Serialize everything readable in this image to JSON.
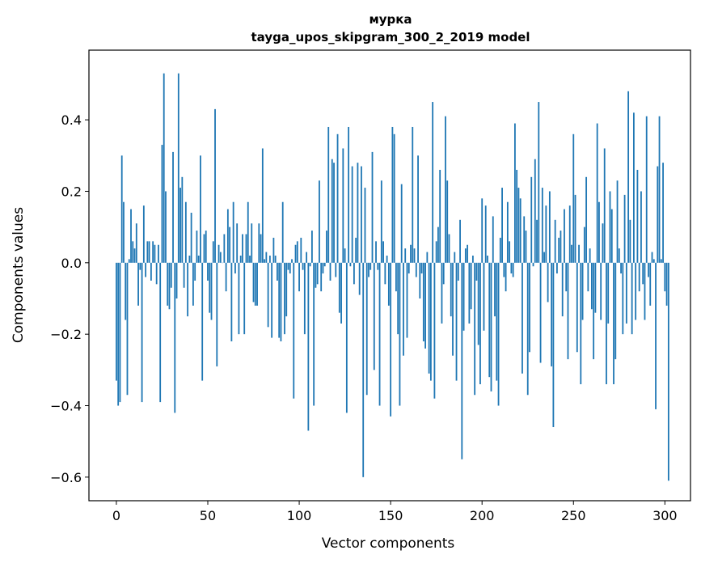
{
  "chart_data": {
    "type": "bar",
    "title_lines": [
      "мурка",
      "tayga_upos_skipgram_300_2_2019 model"
    ],
    "xlabel": "Vector components",
    "ylabel": "Components values",
    "xlim": [
      -15,
      314
    ],
    "ylim": [
      -0.666,
      0.595
    ],
    "xticks": [
      0,
      50,
      100,
      150,
      200,
      250,
      300
    ],
    "yticks": [
      -0.6,
      -0.4,
      -0.2,
      0.0,
      0.2,
      0.4
    ],
    "ytick_labels": [
      "−0.6",
      "−0.4",
      "−0.2",
      "0.0",
      "0.2",
      "0.4"
    ],
    "bar_color": "#1f77b4",
    "values": [
      -0.33,
      -0.4,
      -0.39,
      0.3,
      0.17,
      -0.16,
      -0.37,
      0.01,
      0.15,
      0.06,
      0.04,
      0.11,
      -0.12,
      -0.02,
      -0.39,
      0.16,
      -0.04,
      0.06,
      0.06,
      -0.05,
      0.06,
      0.05,
      -0.06,
      0.05,
      -0.39,
      0.33,
      0.53,
      0.2,
      -0.12,
      -0.13,
      -0.07,
      0.31,
      -0.42,
      -0.1,
      0.53,
      0.21,
      0.24,
      -0.07,
      0.17,
      -0.15,
      0.02,
      0.14,
      -0.12,
      -0.05,
      0.09,
      0.02,
      0.3,
      -0.33,
      0.08,
      0.09,
      -0.05,
      -0.14,
      -0.16,
      0.06,
      0.43,
      -0.29,
      0.05,
      0.03,
      0.0,
      0.08,
      -0.08,
      0.15,
      0.1,
      -0.22,
      0.17,
      -0.03,
      0.11,
      -0.2,
      0.02,
      0.08,
      -0.2,
      0.08,
      0.17,
      0.02,
      0.11,
      -0.11,
      -0.12,
      -0.12,
      0.11,
      0.08,
      0.32,
      0.01,
      0.03,
      -0.18,
      0.02,
      -0.21,
      0.07,
      0.02,
      -0.05,
      -0.21,
      -0.22,
      0.17,
      -0.2,
      -0.15,
      -0.02,
      -0.03,
      0.01,
      -0.38,
      0.05,
      0.06,
      -0.08,
      0.07,
      -0.02,
      -0.2,
      0.03,
      -0.47,
      -0.01,
      0.09,
      -0.4,
      -0.07,
      -0.06,
      0.23,
      -0.08,
      -0.03,
      -0.01,
      0.09,
      0.38,
      -0.05,
      0.29,
      0.28,
      -0.04,
      0.36,
      -0.14,
      -0.17,
      0.32,
      0.04,
      -0.42,
      0.38,
      -0.01,
      0.27,
      -0.06,
      0.07,
      0.28,
      -0.09,
      0.27,
      -0.6,
      0.21,
      -0.37,
      -0.04,
      -0.02,
      0.31,
      -0.3,
      0.06,
      -0.02,
      -0.4,
      0.23,
      0.06,
      -0.06,
      0.02,
      -0.12,
      -0.43,
      0.38,
      0.36,
      -0.08,
      -0.2,
      -0.4,
      0.22,
      -0.26,
      0.04,
      -0.21,
      -0.03,
      0.05,
      0.38,
      0.04,
      -0.04,
      0.3,
      -0.1,
      -0.03,
      -0.22,
      -0.24,
      0.03,
      -0.31,
      -0.33,
      0.45,
      -0.38,
      0.06,
      0.1,
      0.26,
      -0.17,
      -0.06,
      0.41,
      0.23,
      0.08,
      -0.15,
      -0.26,
      0.03,
      -0.33,
      -0.05,
      0.12,
      -0.55,
      -0.19,
      0.04,
      0.05,
      -0.17,
      -0.13,
      0.02,
      -0.37,
      -0.05,
      -0.23,
      -0.34,
      0.18,
      -0.19,
      0.16,
      0.02,
      -0.32,
      -0.36,
      0.13,
      -0.15,
      -0.33,
      -0.4,
      0.07,
      0.21,
      -0.04,
      -0.08,
      0.17,
      0.06,
      -0.03,
      -0.04,
      0.39,
      0.26,
      0.21,
      0.18,
      -0.31,
      0.13,
      0.09,
      -0.37,
      -0.25,
      0.24,
      -0.01,
      0.29,
      0.12,
      0.45,
      -0.28,
      0.21,
      0.03,
      0.16,
      -0.11,
      0.2,
      -0.29,
      -0.46,
      0.12,
      -0.03,
      0.07,
      0.09,
      -0.15,
      0.15,
      -0.08,
      -0.27,
      0.16,
      0.05,
      0.36,
      0.19,
      -0.25,
      0.05,
      -0.34,
      -0.16,
      0.1,
      0.24,
      -0.08,
      0.04,
      -0.13,
      -0.27,
      -0.14,
      0.39,
      0.17,
      -0.16,
      0.11,
      0.32,
      -0.34,
      -0.17,
      0.2,
      0.15,
      -0.34,
      -0.27,
      0.23,
      0.04,
      -0.03,
      -0.2,
      0.19,
      -0.17,
      0.48,
      0.12,
      -0.2,
      0.42,
      -0.16,
      0.26,
      -0.08,
      0.2,
      -0.06,
      -0.16,
      0.41,
      -0.04,
      -0.12,
      0.03,
      0.01,
      -0.41,
      0.27,
      0.41,
      0.01,
      0.28,
      -0.08,
      -0.12,
      -0.61
    ]
  }
}
